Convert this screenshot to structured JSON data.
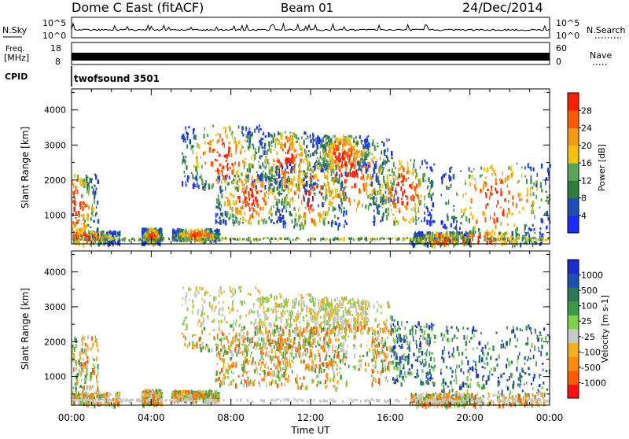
{
  "header": {
    "station": "Dome C East (fitACF)",
    "beam": "Beam 01",
    "date": "24/Dec/2014"
  },
  "strips": {
    "nsky": {
      "label": "N.Sky",
      "ticks": [
        "10^5",
        "10^0"
      ]
    },
    "nsearch": {
      "label": "N.Search",
      "ticks": [
        "10^5",
        "10^0"
      ]
    },
    "freq": {
      "label_line1": "Freq.",
      "label_line2": "[MHz]",
      "ticks": [
        "18",
        "8"
      ]
    },
    "nave": {
      "label": "Nave",
      "ticks": [
        "60",
        "0"
      ]
    },
    "cpid": {
      "label": "CPID",
      "program": "twofsound 3501"
    }
  },
  "colors": {
    "power": [
      "#1c2bff",
      "#1f4fb4",
      "#2e7d3c",
      "#5aa45a",
      "#f2c20f",
      "#f29a10",
      "#ff5a00",
      "#ff1f00"
    ],
    "velocity": [
      "#ff1010",
      "#ff5a00",
      "#ff8a10",
      "#f2b020",
      "#c8c8c8",
      "#7fd04a",
      "#3a9a4a",
      "#2a7a5a",
      "#1f4fb4",
      "#1c2bcc"
    ]
  },
  "chart_data": [
    {
      "type": "heatmap",
      "panel": "power",
      "title": "",
      "ylabel": "Slant Range [km]",
      "xlabel": "",
      "x_ticks": [
        "00:00",
        "04:00",
        "08:00",
        "12:00",
        "16:00",
        "20:00",
        "00:00"
      ],
      "y_ticks": [
        "1000",
        "2000",
        "3000",
        "4000"
      ],
      "ylim": [
        180,
        4600
      ],
      "xlim": [
        0,
        24
      ],
      "colorbar": {
        "label": "Power [dB]",
        "ticks": [
          "4",
          "8",
          "12",
          "16",
          "20",
          "24",
          "28"
        ]
      }
    },
    {
      "type": "heatmap",
      "panel": "velocity",
      "title": "",
      "ylabel": "Slant Range [km]",
      "xlabel": "Time UT",
      "x_ticks": [
        "00:00",
        "04:00",
        "08:00",
        "12:00",
        "16:00",
        "20:00",
        "00:00"
      ],
      "y_ticks": [
        "1000",
        "2000",
        "3000",
        "4000"
      ],
      "ylim": [
        180,
        4600
      ],
      "xlim": [
        0,
        24
      ],
      "colorbar": {
        "label": "Velocity [m s-1]",
        "ticks": [
          "1000",
          "500",
          "100",
          "25",
          "-25",
          "-100",
          "-500",
          "-1000"
        ]
      }
    }
  ]
}
